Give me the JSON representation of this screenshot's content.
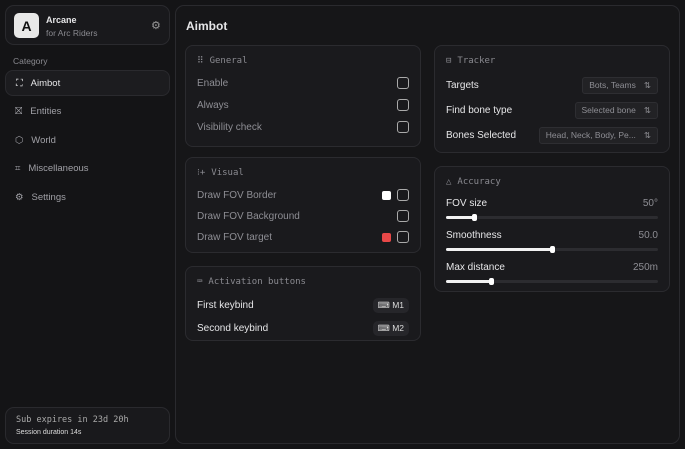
{
  "brand": {
    "logo": "A",
    "name": "Arcane",
    "subtitle": "for Arc Riders",
    "icon": "gear-icon"
  },
  "sidebar": {
    "category_label": "Category",
    "items": [
      {
        "label": "Aimbot",
        "icon": "crosshair-icon",
        "glyph": "⛶",
        "active": true
      },
      {
        "label": "Entities",
        "icon": "entities-icon",
        "glyph": "⛝"
      },
      {
        "label": "World",
        "icon": "world-icon",
        "glyph": "⬡"
      },
      {
        "label": "Miscellaneous",
        "icon": "grid-icon",
        "glyph": "⌗"
      },
      {
        "label": "Settings",
        "icon": "settings-icon",
        "glyph": "⚙"
      }
    ]
  },
  "subscription": {
    "expires": "Sub expires in 23d 20h",
    "session": "Session duration 14s"
  },
  "page": {
    "title": "Aimbot"
  },
  "general": {
    "title": "General",
    "rows": [
      {
        "label": "Enable",
        "checked": false
      },
      {
        "label": "Always",
        "checked": false
      },
      {
        "label": "Visibility check",
        "checked": false
      }
    ]
  },
  "visual": {
    "title": "Visual",
    "rows": [
      {
        "label": "Draw FOV Border",
        "color": "#ffffff",
        "checked": false
      },
      {
        "label": "Draw FOV Background",
        "checked": false
      },
      {
        "label": "Draw FOV target",
        "color": "#e84848",
        "checked": false
      }
    ]
  },
  "activation": {
    "title": "Activation buttons",
    "rows": [
      {
        "label": "First keybind",
        "key": "M1"
      },
      {
        "label": "Second keybind",
        "key": "M2"
      }
    ]
  },
  "tracker": {
    "title": "Tracker",
    "rows": [
      {
        "label": "Targets",
        "value": "Bots, Teams"
      },
      {
        "label": "Find bone type",
        "value": "Selected bone"
      },
      {
        "label": "Bones Selected",
        "value": "Head, Neck, Body, Pe..."
      }
    ]
  },
  "accuracy": {
    "title": "Accuracy",
    "sliders": [
      {
        "label": "FOV size",
        "value": "50°",
        "percent": 13
      },
      {
        "label": "Smoothness",
        "value": "50.0",
        "percent": 50
      },
      {
        "label": "Max distance",
        "value": "250m",
        "percent": 21
      }
    ]
  }
}
